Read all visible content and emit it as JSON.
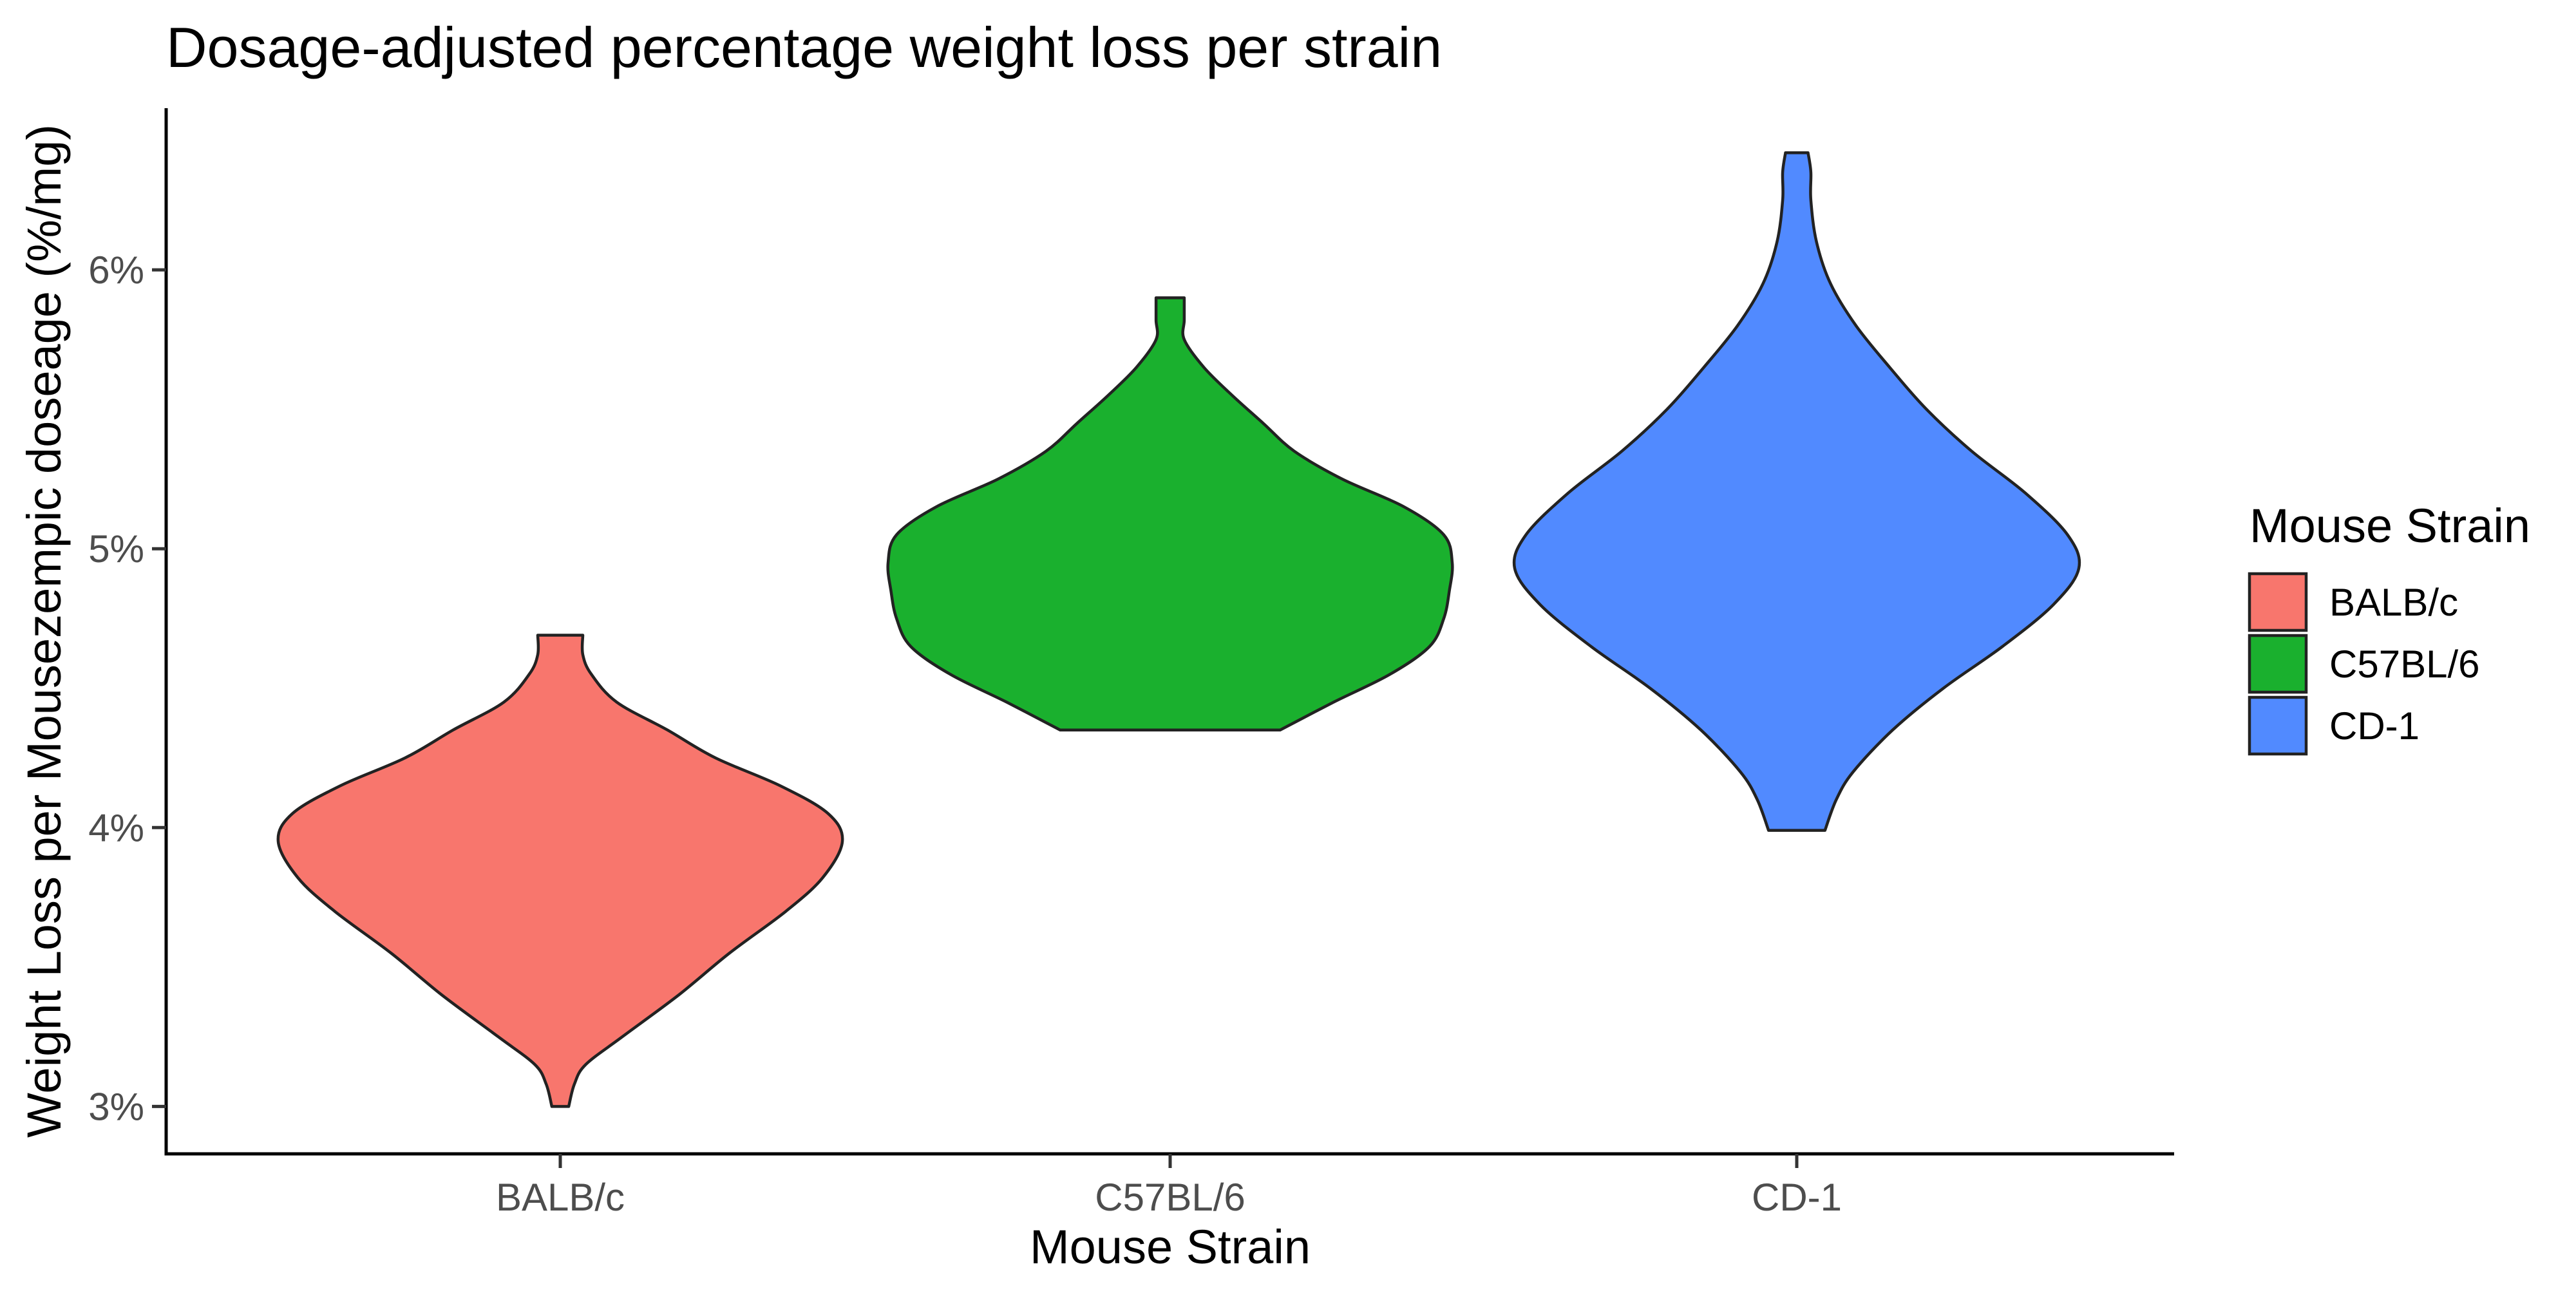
{
  "chart_data": {
    "type": "violin",
    "title": "Dosage-adjusted percentage weight loss per strain",
    "xlabel": "Mouse Strain",
    "ylabel": "Weight Loss per Mousezempic doseage (%/mg)",
    "categories": [
      "BALB/c",
      "C57BL/6",
      "CD-1"
    ],
    "y_ticks": [
      3,
      4,
      5,
      6
    ],
    "y_tick_labels": [
      "3%",
      "4%",
      "5%",
      "6%"
    ],
    "ylim": [
      2.83,
      6.58
    ],
    "grid": false,
    "legend": {
      "title": "Mouse Strain",
      "position": "right",
      "entries": [
        "BALB/c",
        "C57BL/6",
        "CD-1"
      ]
    },
    "series": [
      {
        "category": "BALB/c",
        "color": "#F8766D",
        "min": 3.0,
        "max": 4.69,
        "density_profile": [
          [
            3.0,
            0.03
          ],
          [
            3.08,
            0.05
          ],
          [
            3.15,
            0.09
          ],
          [
            3.25,
            0.22
          ],
          [
            3.4,
            0.42
          ],
          [
            3.55,
            0.6
          ],
          [
            3.7,
            0.8
          ],
          [
            3.82,
            0.93
          ],
          [
            3.95,
            1.0
          ],
          [
            4.05,
            0.95
          ],
          [
            4.15,
            0.78
          ],
          [
            4.25,
            0.55
          ],
          [
            4.35,
            0.38
          ],
          [
            4.45,
            0.2
          ],
          [
            4.55,
            0.11
          ],
          [
            4.62,
            0.08
          ],
          [
            4.69,
            0.08
          ]
        ]
      },
      {
        "category": "C57BL/6",
        "color": "#1AB02E",
        "min": 4.35,
        "max": 5.9,
        "density_profile": [
          [
            4.35,
            0.39
          ],
          [
            4.45,
            0.58
          ],
          [
            4.55,
            0.78
          ],
          [
            4.65,
            0.92
          ],
          [
            4.75,
            0.97
          ],
          [
            4.85,
            0.99
          ],
          [
            4.95,
            1.0
          ],
          [
            5.05,
            0.97
          ],
          [
            5.15,
            0.83
          ],
          [
            5.25,
            0.61
          ],
          [
            5.35,
            0.44
          ],
          [
            5.45,
            0.33
          ],
          [
            5.55,
            0.22
          ],
          [
            5.65,
            0.12
          ],
          [
            5.75,
            0.05
          ],
          [
            5.82,
            0.05
          ],
          [
            5.9,
            0.05
          ]
        ]
      },
      {
        "category": "CD-1",
        "color": "#518AFF",
        "min": 3.99,
        "max": 6.42,
        "density_profile": [
          [
            3.99,
            0.1
          ],
          [
            4.1,
            0.14
          ],
          [
            4.2,
            0.2
          ],
          [
            4.35,
            0.34
          ],
          [
            4.5,
            0.52
          ],
          [
            4.65,
            0.73
          ],
          [
            4.8,
            0.91
          ],
          [
            4.93,
            1.0
          ],
          [
            5.05,
            0.96
          ],
          [
            5.2,
            0.81
          ],
          [
            5.35,
            0.62
          ],
          [
            5.5,
            0.46
          ],
          [
            5.65,
            0.33
          ],
          [
            5.8,
            0.21
          ],
          [
            5.95,
            0.12
          ],
          [
            6.1,
            0.07
          ],
          [
            6.25,
            0.05
          ],
          [
            6.35,
            0.05
          ],
          [
            6.42,
            0.04
          ]
        ]
      }
    ]
  }
}
